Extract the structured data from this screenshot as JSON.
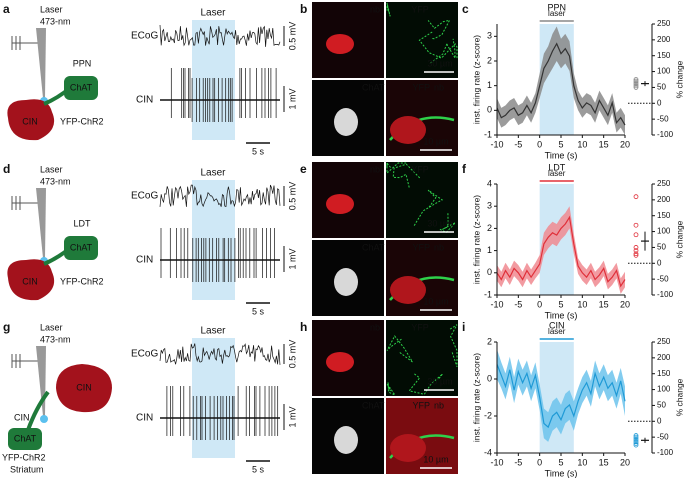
{
  "rows": [
    {
      "schematic": {
        "panel": "a",
        "labels": [
          "Laser",
          "473-nm",
          "PPN",
          "ChAT",
          "CIN",
          "YFP-ChR2"
        ]
      },
      "traces": {
        "laser": "Laser",
        "ecog": "ECoG",
        "ecog_scale": "0.5 mV",
        "cin": "CIN",
        "cin_scale": "1 mV",
        "time_scale": "5 s"
      },
      "images": {
        "panel": "b",
        "nb": "nb",
        "yfp": "YFP",
        "chat": "ChAT",
        "scale_top": "30 µm",
        "yfp_bottom": "YFP",
        "nb_bottom": "nb",
        "scale_bottom": "10 µm"
      }
    },
    {
      "schematic": {
        "panel": "d",
        "labels": [
          "Laser",
          "473-nm",
          "LDT",
          "ChAT",
          "CIN",
          "YFP-ChR2"
        ]
      },
      "traces": {
        "laser": "Laser",
        "ecog": "ECoG",
        "ecog_scale": "0.5 mV",
        "cin": "CIN",
        "cin_scale": "1 mV",
        "time_scale": "5 s"
      },
      "images": {
        "panel": "e",
        "nb": "nb",
        "yfp": "YFP",
        "chat": "ChAT",
        "scale_top": "30 µm",
        "yfp_bottom": "YFP",
        "nb_bottom": "nb",
        "scale_bottom": "10 µm"
      }
    },
    {
      "schematic": {
        "panel": "g",
        "labels": [
          "Laser",
          "473-nm",
          "CIN",
          "CIN",
          "ChAT",
          "YFP-ChR2",
          "Striatum"
        ]
      },
      "traces": {
        "laser": "Laser",
        "ecog": "ECoG",
        "ecog_scale": "0.5 mV",
        "cin": "CIN",
        "cin_scale": "1 mV",
        "time_scale": "5 s"
      },
      "images": {
        "panel": "h",
        "nb": "nb",
        "yfp": "YFP",
        "chat": "ChAT",
        "scale_top": "30 µm",
        "yfp_bottom": "YFP",
        "nb_bottom": "nb",
        "scale_bottom": "10 µm"
      }
    }
  ],
  "chart_data": [
    {
      "type": "line",
      "panel": "c",
      "title": "PPN",
      "annotation": "laser",
      "annotation_color": "#888888",
      "xlabel": "Time (s)",
      "ylabel": "inst. firing rate (z-score)",
      "y2label": "% change",
      "x": [
        -10,
        -9,
        -8,
        -7,
        -6,
        -5,
        -4,
        -3,
        -2,
        -1,
        0,
        1,
        2,
        3,
        4,
        5,
        6,
        7,
        8,
        9,
        10,
        11,
        12,
        13,
        14,
        15,
        16,
        17,
        18,
        19,
        20
      ],
      "values": [
        0.1,
        -0.3,
        -0.2,
        0,
        0.1,
        -0.2,
        -0.1,
        0.2,
        -0.1,
        0.3,
        1.0,
        1.7,
        2.0,
        2.4,
        2.7,
        2.3,
        2.5,
        2.2,
        1.0,
        0.4,
        0.1,
        0.3,
        0.2,
        -0.1,
        0.4,
        0.1,
        -0.2,
        0.3,
        -0.5,
        -0.3,
        -0.6
      ],
      "error": [
        0.4,
        0.4,
        0.4,
        0.4,
        0.4,
        0.4,
        0.4,
        0.4,
        0.4,
        0.4,
        0.5,
        0.6,
        0.6,
        0.7,
        0.7,
        0.6,
        0.6,
        0.6,
        0.5,
        0.4,
        0.4,
        0.4,
        0.4,
        0.4,
        0.4,
        0.4,
        0.4,
        0.4,
        0.4,
        0.4,
        0.4
      ],
      "color": "#333333",
      "band_color": "#8a8a8a",
      "laser_window": [
        0,
        8
      ],
      "laser_color": "#cfe8f6",
      "xlim": [
        -10,
        20
      ],
      "xticks": [
        -10,
        -5,
        0,
        5,
        10,
        15,
        20
      ],
      "ylim": [
        -1,
        3.5
      ],
      "yticks": [
        -1,
        0,
        1,
        2,
        3
      ],
      "y2lim": [
        -100,
        250
      ],
      "y2ticks": [
        -100,
        -50,
        0,
        50,
        100,
        150,
        200,
        250
      ],
      "change": {
        "values": [
          50,
          55,
          60,
          65,
          70,
          75
        ],
        "mean": 62,
        "error": 8,
        "color": "#888888"
      }
    },
    {
      "type": "line",
      "panel": "f",
      "title": "LDT",
      "annotation": "laser",
      "annotation_color": "#e0303a",
      "xlabel": "Time (s)",
      "ylabel": "inst. firing rate (z-score)",
      "y2label": "% change",
      "x": [
        -10,
        -9,
        -8,
        -7,
        -6,
        -5,
        -4,
        -3,
        -2,
        -1,
        0,
        1,
        2,
        3,
        4,
        5,
        6,
        7,
        8,
        9,
        10,
        11,
        12,
        13,
        14,
        15,
        16,
        17,
        18,
        19,
        20
      ],
      "values": [
        0,
        -0.3,
        0.1,
        -0.2,
        0.2,
        0,
        -0.3,
        0.1,
        -0.2,
        0.1,
        0.4,
        1.3,
        1.6,
        1.8,
        1.7,
        2.0,
        2.2,
        2.5,
        1.3,
        0.3,
        0,
        -0.2,
        0.1,
        -0.3,
        -0.1,
        0.2,
        -0.4,
        -0.2,
        0.1,
        -0.6,
        -0.3
      ],
      "error": [
        0.35,
        0.35,
        0.35,
        0.35,
        0.35,
        0.35,
        0.35,
        0.35,
        0.35,
        0.35,
        0.4,
        0.5,
        0.5,
        0.5,
        0.5,
        0.5,
        0.5,
        0.5,
        0.45,
        0.35,
        0.35,
        0.35,
        0.35,
        0.35,
        0.35,
        0.35,
        0.35,
        0.35,
        0.35,
        0.35,
        0.35
      ],
      "color": "#e0303a",
      "band_color": "#f08a90",
      "laser_window": [
        0,
        8
      ],
      "laser_color": "#cfe8f6",
      "xlim": [
        -10,
        20
      ],
      "xticks": [
        -10,
        -5,
        0,
        5,
        10,
        15,
        20
      ],
      "ylim": [
        -1,
        4
      ],
      "yticks": [
        -1,
        0,
        1,
        2,
        3,
        4
      ],
      "y2lim": [
        -100,
        250
      ],
      "y2ticks": [
        -100,
        -50,
        0,
        50,
        100,
        150,
        200,
        250
      ],
      "change": {
        "values": [
          210,
          120,
          90,
          50,
          40,
          30,
          25
        ],
        "mean": 70,
        "error": 30,
        "color": "#e0303a"
      }
    },
    {
      "type": "line",
      "panel": "i",
      "title": "CIN",
      "annotation": "laser",
      "annotation_color": "#1f9ad6",
      "xlabel": "Time (s)",
      "ylabel": "inst. firing rate (z-score)",
      "y2label": "% change",
      "x": [
        -10,
        -9,
        -8,
        -7,
        -6,
        -5,
        -4,
        -3,
        -2,
        -1,
        0,
        1,
        2,
        3,
        4,
        5,
        6,
        7,
        8,
        9,
        10,
        11,
        12,
        13,
        14,
        15,
        16,
        17,
        18,
        19,
        20
      ],
      "values": [
        0.8,
        0.2,
        -0.4,
        0.5,
        -0.6,
        0.4,
        -0.2,
        0.3,
        -0.5,
        0.2,
        -1.0,
        -2.4,
        -2.6,
        -2.0,
        -1.8,
        -2.2,
        -1.6,
        -1.4,
        -2.0,
        -1.2,
        -0.6,
        -0.2,
        -0.8,
        0.3,
        -0.4,
        0.1,
        -0.5,
        -0.2,
        -0.9,
        -0.1,
        -1.2
      ],
      "error": [
        0.8,
        0.7,
        0.7,
        0.7,
        0.7,
        0.7,
        0.7,
        0.7,
        0.7,
        0.7,
        0.7,
        0.8,
        0.8,
        0.8,
        0.8,
        0.8,
        0.8,
        0.8,
        0.8,
        0.7,
        0.7,
        0.7,
        0.7,
        0.7,
        0.7,
        0.7,
        0.7,
        0.7,
        0.7,
        0.7,
        0.8
      ],
      "color": "#1f9ad6",
      "band_color": "#6cc3ec",
      "laser_window": [
        0,
        8
      ],
      "laser_color": "#cfe8f6",
      "xlim": [
        -10,
        20
      ],
      "xticks": [
        -10,
        -5,
        0,
        5,
        10,
        15,
        20
      ],
      "ylim": [
        -4,
        2
      ],
      "yticks": [
        -4,
        -2,
        0,
        2
      ],
      "y2lim": [
        -100,
        250
      ],
      "y2ticks": [
        -100,
        -50,
        0,
        50,
        100,
        150,
        200,
        250
      ],
      "change": {
        "values": [
          -45,
          -50,
          -55,
          -60,
          -65,
          -70,
          -75
        ],
        "mean": -60,
        "error": 8,
        "color": "#1f9ad6"
      }
    }
  ]
}
